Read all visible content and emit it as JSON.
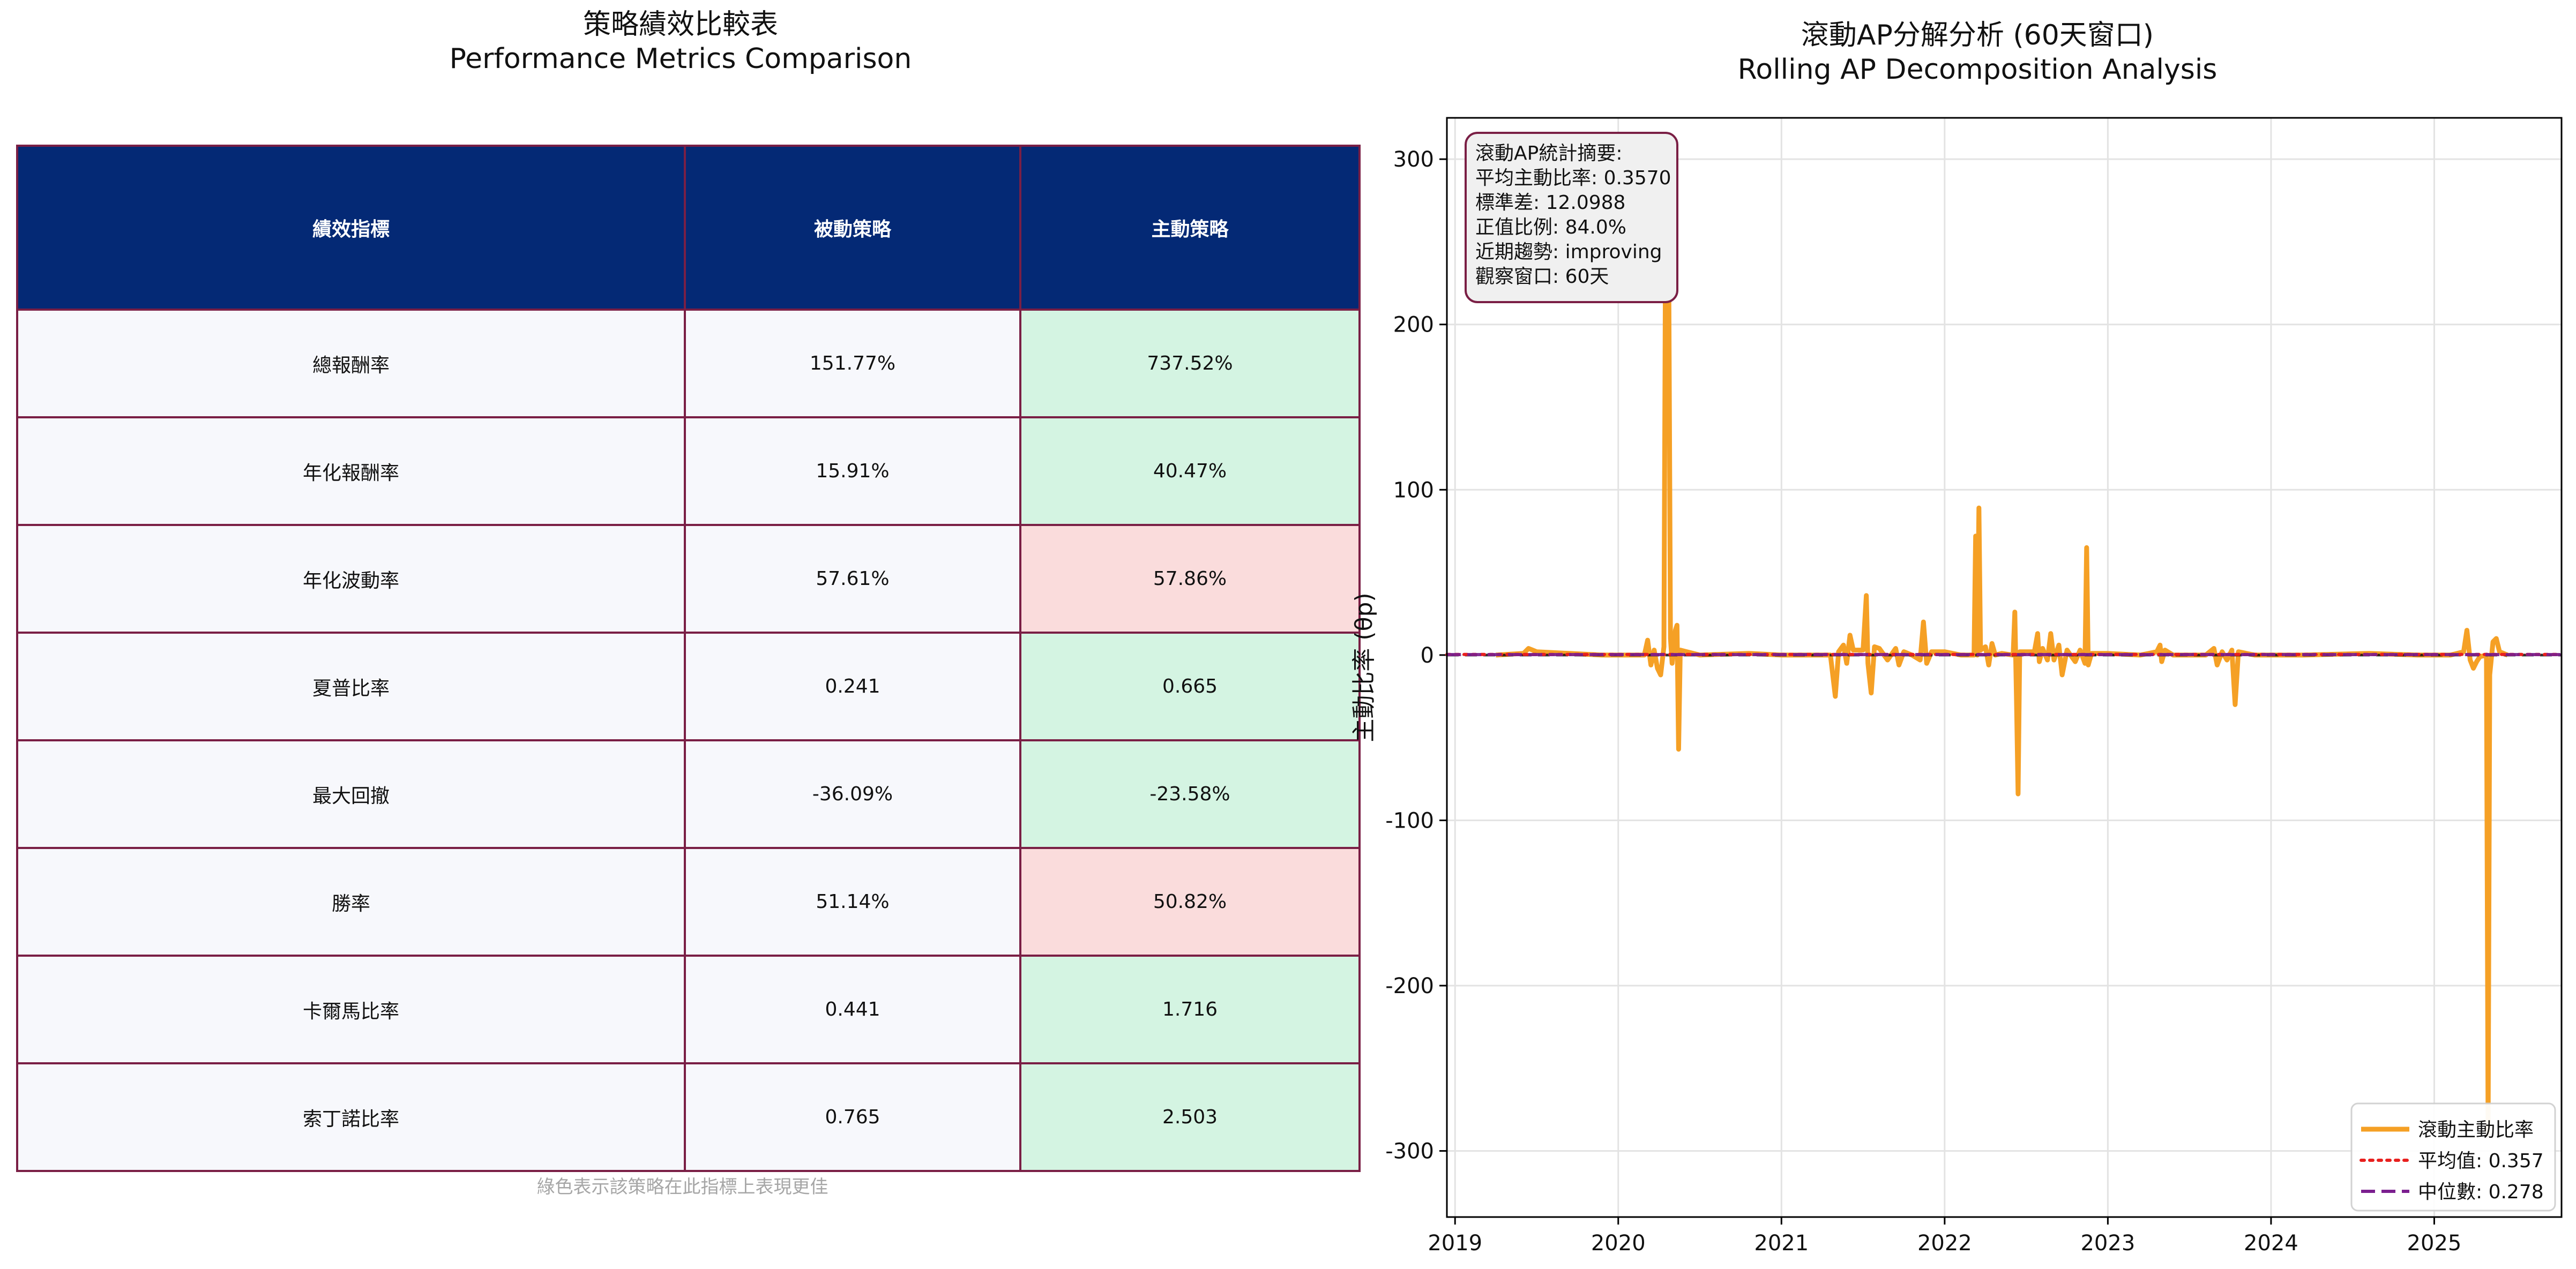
{
  "table": {
    "title_zh": "策略績效比較表",
    "title_en": "Performance Metrics Comparison",
    "headers": [
      "績效指標",
      "被動策略",
      "主動策略"
    ],
    "rows": [
      {
        "metric": "總報酬率",
        "passive": "151.77%",
        "active": "737.52%",
        "active_better": true
      },
      {
        "metric": "年化報酬率",
        "passive": "15.91%",
        "active": "40.47%",
        "active_better": true
      },
      {
        "metric": "年化波動率",
        "passive": "57.61%",
        "active": "57.86%",
        "active_better": false
      },
      {
        "metric": "夏普比率",
        "passive": "0.241",
        "active": "0.665",
        "active_better": true
      },
      {
        "metric": "最大回撤",
        "passive": "-36.09%",
        "active": "-23.58%",
        "active_better": true
      },
      {
        "metric": "勝率",
        "passive": "51.14%",
        "active": "50.82%",
        "active_better": false
      },
      {
        "metric": "卡爾馬比率",
        "passive": "0.441",
        "active": "1.716",
        "active_better": true
      },
      {
        "metric": "索丁諾比率",
        "passive": "0.765",
        "active": "2.503",
        "active_better": true
      }
    ],
    "note": "綠色表示該策略在此指標上表現更佳",
    "colors": {
      "header": "#042975",
      "border": "#7a1f45",
      "better": "#d4f4e2",
      "worse": "#fadcdc",
      "plain": "#f7f8fc"
    }
  },
  "chart_data": {
    "type": "line",
    "title": "滾動AP分解分析 (60天窗口)",
    "subtitle": "Rolling AP Decomposition Analysis",
    "xlabel": "",
    "ylabel": "主動比率 (θp)",
    "xlim": [
      2018.95,
      2025.78
    ],
    "ylim": [
      -340,
      325
    ],
    "x_ticks": [
      2019,
      2020,
      2021,
      2022,
      2023,
      2024,
      2025
    ],
    "y_ticks": [
      -300,
      -200,
      -100,
      0,
      100,
      200,
      300
    ],
    "grid": true,
    "legend_position": "lower-right",
    "stats_box": {
      "position": "top-left",
      "lines": [
        "滾動AP統計摘要:",
        "平均主動比率: 0.3570",
        "標準差: 12.0988",
        "正值比例: 84.0%",
        "近期趨勢: improving",
        "觀察窗口: 60天"
      ]
    },
    "series": [
      {
        "name": "滾動主動比率",
        "color": "#f5a025",
        "style": "solid",
        "points": [
          [
            2019.25,
            0
          ],
          [
            2019.42,
            1
          ],
          [
            2019.45,
            4
          ],
          [
            2019.5,
            2
          ],
          [
            2019.7,
            1
          ],
          [
            2019.9,
            0
          ],
          [
            2020.16,
            0
          ],
          [
            2020.18,
            9
          ],
          [
            2020.2,
            -6
          ],
          [
            2020.22,
            3
          ],
          [
            2020.24,
            -8
          ],
          [
            2020.26,
            -12
          ],
          [
            2020.28,
            5
          ],
          [
            2020.29,
            260
          ],
          [
            2020.3,
            300
          ],
          [
            2020.31,
            220
          ],
          [
            2020.32,
            10
          ],
          [
            2020.33,
            -5
          ],
          [
            2020.35,
            15
          ],
          [
            2020.36,
            18
          ],
          [
            2020.37,
            -57
          ],
          [
            2020.38,
            3
          ],
          [
            2020.42,
            2
          ],
          [
            2020.5,
            0
          ],
          [
            2020.8,
            1
          ],
          [
            2021.0,
            0
          ],
          [
            2021.3,
            0
          ],
          [
            2021.33,
            -25
          ],
          [
            2021.35,
            2
          ],
          [
            2021.38,
            6
          ],
          [
            2021.4,
            -5
          ],
          [
            2021.42,
            12
          ],
          [
            2021.44,
            3
          ],
          [
            2021.5,
            3
          ],
          [
            2021.52,
            36
          ],
          [
            2021.53,
            -5
          ],
          [
            2021.55,
            -23
          ],
          [
            2021.57,
            5
          ],
          [
            2021.6,
            4
          ],
          [
            2021.65,
            -3
          ],
          [
            2021.7,
            4
          ],
          [
            2021.72,
            -6
          ],
          [
            2021.75,
            2
          ],
          [
            2021.8,
            0
          ],
          [
            2021.85,
            -3
          ],
          [
            2021.87,
            20
          ],
          [
            2021.89,
            -5
          ],
          [
            2021.92,
            2
          ],
          [
            2022.0,
            2
          ],
          [
            2022.1,
            0
          ],
          [
            2022.18,
            0
          ],
          [
            2022.19,
            72
          ],
          [
            2022.2,
            0
          ],
          [
            2022.21,
            89
          ],
          [
            2022.22,
            3
          ],
          [
            2022.25,
            5
          ],
          [
            2022.27,
            -6
          ],
          [
            2022.29,
            7
          ],
          [
            2022.31,
            0
          ],
          [
            2022.35,
            1
          ],
          [
            2022.42,
            0
          ],
          [
            2022.43,
            26
          ],
          [
            2022.44,
            -25
          ],
          [
            2022.45,
            -84
          ],
          [
            2022.46,
            2
          ],
          [
            2022.48,
            2
          ],
          [
            2022.55,
            2
          ],
          [
            2022.57,
            13
          ],
          [
            2022.58,
            -4
          ],
          [
            2022.6,
            4
          ],
          [
            2022.63,
            -3
          ],
          [
            2022.65,
            13
          ],
          [
            2022.67,
            -3
          ],
          [
            2022.7,
            6
          ],
          [
            2022.72,
            -12
          ],
          [
            2022.75,
            3
          ],
          [
            2022.8,
            -4
          ],
          [
            2022.83,
            3
          ],
          [
            2022.86,
            -5
          ],
          [
            2022.87,
            65
          ],
          [
            2022.88,
            -6
          ],
          [
            2022.9,
            1
          ],
          [
            2023.0,
            1
          ],
          [
            2023.2,
            0
          ],
          [
            2023.3,
            2
          ],
          [
            2023.32,
            6
          ],
          [
            2023.33,
            -4
          ],
          [
            2023.35,
            3
          ],
          [
            2023.4,
            0
          ],
          [
            2023.6,
            0
          ],
          [
            2023.65,
            4
          ],
          [
            2023.67,
            -6
          ],
          [
            2023.7,
            2
          ],
          [
            2023.73,
            -3
          ],
          [
            2023.76,
            3
          ],
          [
            2023.78,
            -30
          ],
          [
            2023.8,
            2
          ],
          [
            2023.9,
            0
          ],
          [
            2024.2,
            0
          ],
          [
            2024.6,
            1
          ],
          [
            2024.9,
            0
          ],
          [
            2025.1,
            0
          ],
          [
            2025.18,
            2
          ],
          [
            2025.2,
            15
          ],
          [
            2025.22,
            -3
          ],
          [
            2025.24,
            -8
          ],
          [
            2025.26,
            -4
          ],
          [
            2025.28,
            -1
          ],
          [
            2025.32,
            0
          ],
          [
            2025.33,
            -290
          ],
          [
            2025.34,
            -12
          ],
          [
            2025.36,
            8
          ],
          [
            2025.38,
            10
          ],
          [
            2025.4,
            2
          ],
          [
            2025.45,
            0
          ]
        ]
      },
      {
        "name": "平均值: 0.357",
        "color": "#e8201e",
        "style": "dotted",
        "value": 0.357
      },
      {
        "name": "中位數: 0.278",
        "color": "#7b1f8f",
        "style": "dashed",
        "value": 0.278
      }
    ],
    "zero_line": {
      "value": 0,
      "color": "#111111",
      "style": "dashed"
    }
  }
}
